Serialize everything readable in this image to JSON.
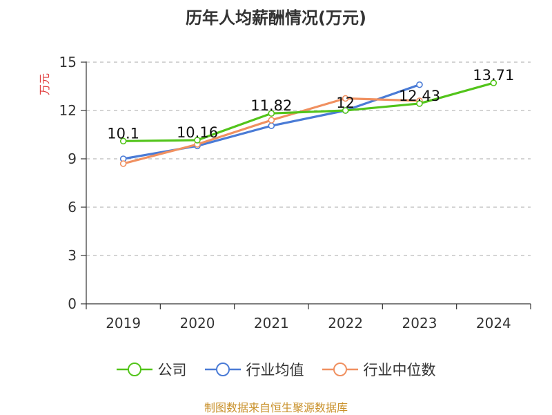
{
  "chart_data": {
    "type": "line",
    "title": "历年人均薪酬情况(万元)",
    "ylabel": "万元",
    "xlabel": "",
    "categories": [
      "2019",
      "2020",
      "2021",
      "2022",
      "2023",
      "2024"
    ],
    "ylim": [
      0,
      15
    ],
    "yticks": [
      0,
      3,
      6,
      9,
      12,
      15
    ],
    "grid": "horizontal dashed",
    "legend_position": "bottom",
    "series": [
      {
        "name": "公司",
        "color": "#52c41a",
        "values": [
          10.1,
          10.16,
          11.82,
          12,
          12.43,
          13.71
        ],
        "labels": [
          "10.1",
          "10.16",
          "11.82",
          "12",
          "12.43",
          "13.71"
        ]
      },
      {
        "name": "行业均值",
        "color": "#4a7bd6",
        "values": [
          9.0,
          9.8,
          11.05,
          12.0,
          13.6,
          null
        ]
      },
      {
        "name": "行业中位数",
        "color": "#f09060",
        "values": [
          8.7,
          9.9,
          11.4,
          12.75,
          12.6,
          null
        ]
      }
    ]
  },
  "source": "制图数据来自恒生聚源数据库"
}
